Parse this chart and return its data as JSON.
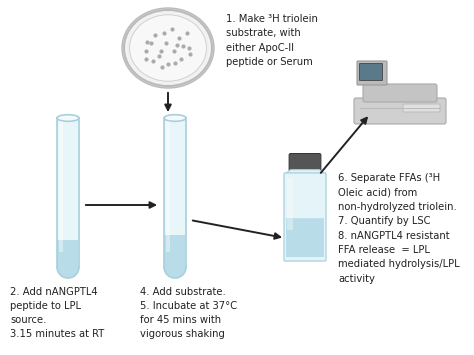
{
  "bg_color": "#ffffff",
  "text_color": "#222222",
  "arrow_color": "#222222",
  "step1_text": "1. Make ³H triolein\nsubstrate, with\neither ApoC-II\npeptide or Serum",
  "step2_text": "2. Add nANGPTL4\npeptide to LPL\nsource.\n3.15 minutes at RT",
  "step4_text": "4. Add substrate.\n5. Incubate at 37°C\nfor 45 mins with\nvigorous shaking",
  "step6_text": "6. Separate FFAs (³H\nOleic acid) from\nnon-hydrolyzed triolein.\n7. Quantify by LSC\n8. nANGPTL4 resistant\nFFA release  = LPL\nmediated hydrolysis/LPL\nactivity",
  "font_size_main": 7.2,
  "font_family": "DejaVu Sans",
  "tube_body_color": "#e8f6fa",
  "tube_edge_color": "#a8d0dc",
  "tube_liquid_color": "#b8dce8",
  "tube_highlight": "#f5fbfd",
  "vial_cap_color": "#555555",
  "vial_body_color": "#e4f4f8",
  "vial_liquid_color": "#b8dce8",
  "petri_outer": "#e8e8e8",
  "petri_inner": "#f5f5f5",
  "petri_dot_color": "#999999",
  "lsc_body": "#cccccc",
  "lsc_screen": "#5a7a8a",
  "lsc_dark": "#888888"
}
